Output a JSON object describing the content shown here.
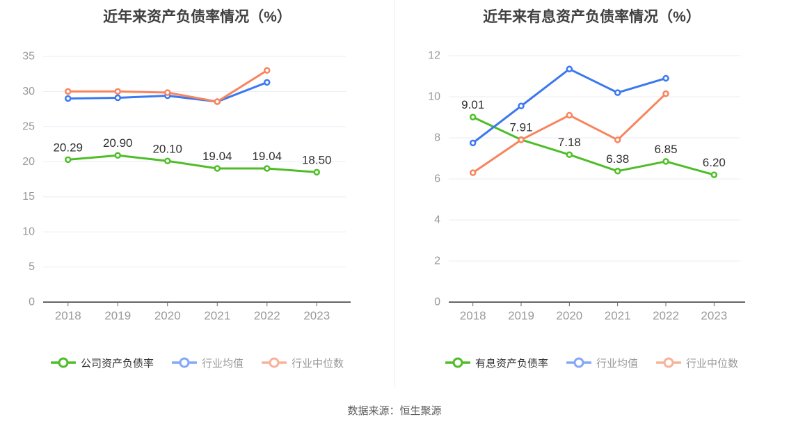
{
  "page": {
    "source_text": "数据来源：恒生聚源"
  },
  "colors": {
    "grid": "#e8edf6",
    "axis": "#666666",
    "tick_label": "#999999",
    "title": "#404040",
    "data_label": "#2f2f2f",
    "legend_text_active": "#333333",
    "legend_text_muted": "#999999",
    "divider": "#ebebeb",
    "source_text": "#5c5c5c",
    "green": "#4ebe28",
    "blue": "#3b78f0",
    "orange": "#f8845e"
  },
  "chart_data": [
    {
      "type": "line",
      "title": "近年来资产负债率情况（%）",
      "categories": [
        "2018",
        "2019",
        "2020",
        "2021",
        "2022",
        "2023"
      ],
      "ylim": [
        0,
        35
      ],
      "y_ticks": [
        0,
        5,
        10,
        15,
        20,
        25,
        30,
        35
      ],
      "grid": true,
      "legend_position": "bottom",
      "series": [
        {
          "name": "公司资产负债率",
          "color": "#4ebe28",
          "legend_color": "#4ebe28",
          "values": [
            20.29,
            20.9,
            20.1,
            19.04,
            19.04,
            18.5
          ],
          "point_labels": [
            "20.29",
            "20.90",
            "20.10",
            "19.04",
            "19.04",
            "18.50"
          ]
        },
        {
          "name": "行业均值",
          "color": "#3b78f0",
          "legend_color": "#84a8f6",
          "values": [
            29.0,
            29.1,
            29.4,
            28.55,
            31.3,
            null
          ]
        },
        {
          "name": "行业中位数",
          "color": "#f8845e",
          "legend_color": "#f8b29a",
          "values": [
            30.0,
            30.0,
            29.85,
            28.55,
            33.0,
            null
          ]
        }
      ]
    },
    {
      "type": "line",
      "title": "近年来有息资产负债率情况（%）",
      "categories": [
        "2018",
        "2019",
        "2020",
        "2021",
        "2022",
        "2023"
      ],
      "ylim": [
        0,
        12
      ],
      "y_ticks": [
        0,
        2,
        4,
        6,
        8,
        10,
        12
      ],
      "grid": true,
      "legend_position": "bottom",
      "series": [
        {
          "name": "有息资产负债率",
          "color": "#4ebe28",
          "legend_color": "#4ebe28",
          "values": [
            9.01,
            7.91,
            7.18,
            6.38,
            6.85,
            6.2
          ],
          "point_labels": [
            "9.01",
            "7.91",
            "7.18",
            "6.38",
            "6.85",
            "6.20"
          ]
        },
        {
          "name": "行业均值",
          "color": "#3b78f0",
          "legend_color": "#84a8f6",
          "values": [
            7.75,
            9.55,
            11.35,
            10.2,
            10.9,
            null
          ]
        },
        {
          "name": "行业中位数",
          "color": "#f8845e",
          "legend_color": "#f8b29a",
          "values": [
            6.3,
            7.9,
            9.1,
            7.9,
            10.15,
            null
          ]
        }
      ]
    }
  ]
}
